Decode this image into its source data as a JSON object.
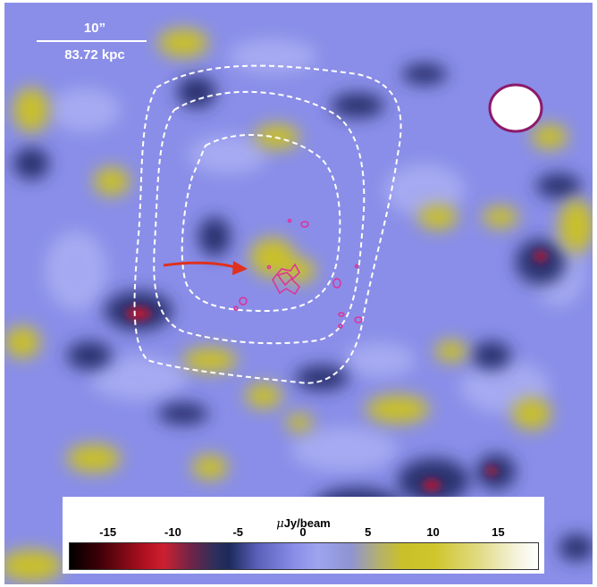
{
  "scale_bar": {
    "angular_label": "10”",
    "physical_label": "83.72 kpc"
  },
  "colorbar": {
    "unit_prefix": "μ",
    "unit_rest": "Jy/beam",
    "ticks": [
      "-15",
      "-10",
      "-5",
      "0",
      "5",
      "10",
      "15"
    ],
    "range": [
      -18,
      18
    ]
  },
  "colors": {
    "background_level": "#8a8ee8",
    "positive": "#cfc62c",
    "negative_dark": "#1c2a5a",
    "negative_red": "#cc2030",
    "contour_white": "#ffffff",
    "contour_magenta": "#e0309a",
    "beam_outline": "#8c1a6a",
    "arrow": "#e0301e"
  },
  "markers": {
    "beam_ellipse": "ellipse-icon",
    "pointer_arrow": "arrow-right-icon"
  }
}
